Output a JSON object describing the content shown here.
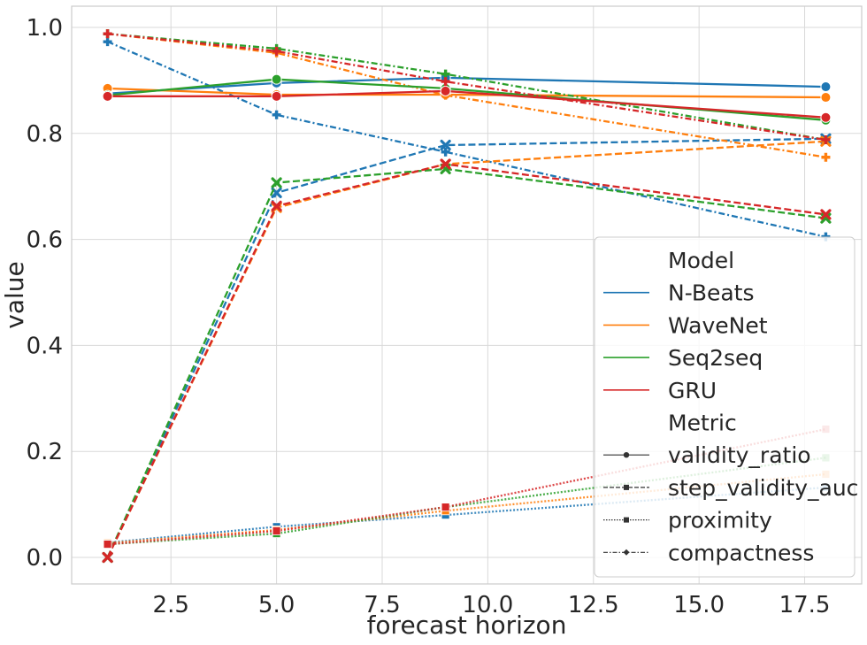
{
  "chart_data": {
    "type": "line",
    "title": "",
    "xlabel": "forecast horizon",
    "ylabel": "value",
    "xlim": [
      0.15,
      18.85
    ],
    "ylim": [
      -0.05,
      1.04
    ],
    "x_ticks": [
      2.5,
      5.0,
      7.5,
      10.0,
      12.5,
      15.0,
      17.5
    ],
    "x_tick_labels": [
      "2.5",
      "5.0",
      "7.5",
      "10.0",
      "12.5",
      "15.0",
      "17.5"
    ],
    "y_ticks": [
      0.0,
      0.2,
      0.4,
      0.6,
      0.8,
      1.0
    ],
    "y_tick_labels": [
      "0.0",
      "0.2",
      "0.4",
      "0.6",
      "0.8",
      "1.0"
    ],
    "grid": true,
    "x": [
      1,
      5,
      9,
      18
    ],
    "models": [
      {
        "name": "N-Beats",
        "color": "#1f77b4"
      },
      {
        "name": "WaveNet",
        "color": "#ff7f0e"
      },
      {
        "name": "Seq2seq",
        "color": "#2ca02c"
      },
      {
        "name": "GRU",
        "color": "#d62728"
      }
    ],
    "metrics": [
      {
        "name": "validity_ratio",
        "marker": "circle",
        "dash": "solid"
      },
      {
        "name": "step_validity_auc",
        "marker": "x",
        "dash": "dashed"
      },
      {
        "name": "proximity",
        "marker": "square",
        "dash": "dotted"
      },
      {
        "name": "compactness",
        "marker": "plus",
        "dash": "dashdot"
      }
    ],
    "series": [
      {
        "model": "N-Beats",
        "metric": "validity_ratio",
        "values": [
          0.875,
          0.895,
          0.905,
          0.888
        ]
      },
      {
        "model": "N-Beats",
        "metric": "step_validity_auc",
        "values": [
          0.0,
          0.688,
          0.778,
          0.79
        ]
      },
      {
        "model": "N-Beats",
        "metric": "proximity",
        "values": [
          0.028,
          0.058,
          0.08,
          0.132
        ]
      },
      {
        "model": "N-Beats",
        "metric": "compactness",
        "values": [
          0.973,
          0.835,
          0.765,
          0.605
        ]
      },
      {
        "model": "WaveNet",
        "metric": "validity_ratio",
        "values": [
          0.885,
          0.873,
          0.873,
          0.868
        ]
      },
      {
        "model": "WaveNet",
        "metric": "step_validity_auc",
        "values": [
          0.0,
          0.66,
          0.742,
          0.785
        ]
      },
      {
        "model": "WaveNet",
        "metric": "proximity",
        "values": [
          0.027,
          0.052,
          0.088,
          0.157
        ]
      },
      {
        "model": "WaveNet",
        "metric": "compactness",
        "values": [
          0.988,
          0.952,
          0.872,
          0.755
        ]
      },
      {
        "model": "Seq2seq",
        "metric": "validity_ratio",
        "values": [
          0.872,
          0.902,
          0.885,
          0.825
        ]
      },
      {
        "model": "Seq2seq",
        "metric": "step_validity_auc",
        "values": [
          0.0,
          0.707,
          0.733,
          0.64
        ]
      },
      {
        "model": "Seq2seq",
        "metric": "proximity",
        "values": [
          0.025,
          0.045,
          0.095,
          0.188
        ]
      },
      {
        "model": "Seq2seq",
        "metric": "compactness",
        "values": [
          0.988,
          0.96,
          0.912,
          0.788
        ]
      },
      {
        "model": "GRU",
        "metric": "validity_ratio",
        "values": [
          0.87,
          0.87,
          0.88,
          0.83
        ]
      },
      {
        "model": "GRU",
        "metric": "step_validity_auc",
        "values": [
          0.0,
          0.663,
          0.742,
          0.647
        ]
      },
      {
        "model": "GRU",
        "metric": "proximity",
        "values": [
          0.025,
          0.05,
          0.095,
          0.242
        ]
      },
      {
        "model": "GRU",
        "metric": "compactness",
        "values": [
          0.988,
          0.955,
          0.898,
          0.788
        ]
      }
    ],
    "legend": {
      "location": "lower-right",
      "model_title": "Model",
      "metric_title": "Metric"
    }
  }
}
